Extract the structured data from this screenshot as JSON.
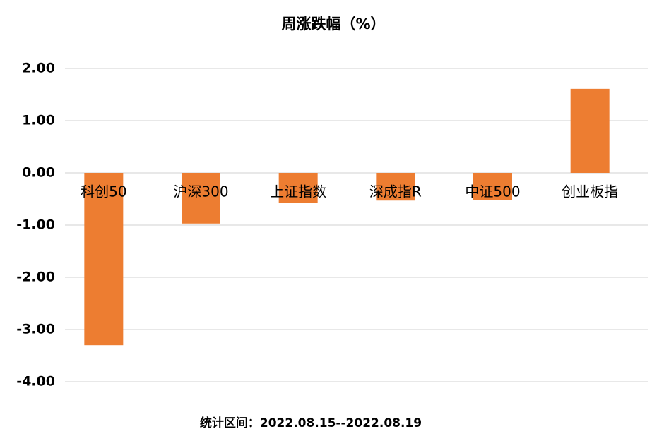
{
  "chart_data": {
    "type": "bar",
    "title": "周涨跌幅（%）",
    "categories": [
      "科创50",
      "沪深300",
      "上证指数",
      "深成指R",
      "中证500",
      "创业板指"
    ],
    "values": [
      -3.3,
      -0.97,
      -0.58,
      -0.53,
      -0.52,
      1.61
    ],
    "color": "#ed7d31",
    "ylim": [
      -4,
      2
    ],
    "yticks": [
      {
        "value": -4,
        "label": "-4.00"
      },
      {
        "value": -3,
        "label": "-3.00"
      },
      {
        "value": -2,
        "label": "-2.00"
      },
      {
        "value": -1,
        "label": "-1.00"
      },
      {
        "value": 0,
        "label": "0.00"
      },
      {
        "value": 1,
        "label": "1.00"
      },
      {
        "value": 2,
        "label": "2.00"
      }
    ],
    "grid": true,
    "footnote": "统计区间：2022.08.15--2022.08.19"
  }
}
